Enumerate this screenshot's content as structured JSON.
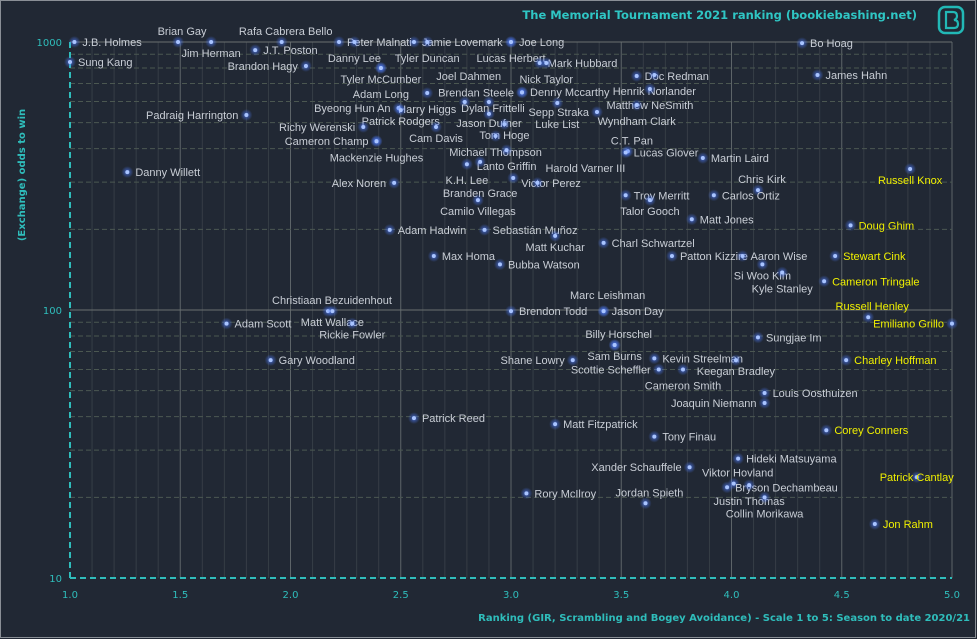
{
  "chart_data": {
    "type": "scatter",
    "title": "The Memorial Tournament 2021 ranking  (bookiebashing.net)",
    "xlabel": "Ranking (GIR, Scrambling and Bogey Avoidance) - Scale 1 to 5: Season to date 2020/21",
    "ylabel": "(Exchange) odds to win",
    "xlim": [
      1.0,
      5.0
    ],
    "ylim": [
      10,
      1000
    ],
    "yscale": "log",
    "x_ticks": [
      "1.0",
      "1.5",
      "2.0",
      "2.5",
      "3.0",
      "3.5",
      "4.0",
      "4.5",
      "5.0"
    ],
    "y_ticks": [
      "10",
      "100",
      "1000"
    ],
    "grid": true,
    "colors": {
      "background": "#212834",
      "label": "#c9ced6",
      "highlight": "#f0f000",
      "accent": "#2fbdbb",
      "point": "#8fb4ff"
    },
    "logo": "bookiebashing B logo",
    "points": [
      {
        "name": "J.B. Holmes",
        "x": 1.02,
        "y": 1000,
        "label": "right"
      },
      {
        "name": "Brian Gay",
        "x": 1.49,
        "y": 1000,
        "label": "above"
      },
      {
        "name": "Jim Herman",
        "x": 1.64,
        "y": 1000,
        "label": "below"
      },
      {
        "name": "Rafa Cabrera Bello",
        "x": 1.96,
        "y": 1000,
        "label": "above"
      },
      {
        "name": "J.T. Poston",
        "x": 1.84,
        "y": 933,
        "label": "right"
      },
      {
        "name": "Sung Kang",
        "x": 1.0,
        "y": 842,
        "label": "right"
      },
      {
        "name": "Peter Malnati",
        "x": 2.22,
        "y": 1000,
        "label": "above"
      },
      {
        "name": "Danny Lee",
        "x": 2.29,
        "y": 1000,
        "label": "right"
      },
      {
        "name": "Jamie Lovemark",
        "x": 2.56,
        "y": 1000,
        "label": "above"
      },
      {
        "name": "Tyler Duncan",
        "x": 2.62,
        "y": 1000,
        "label": "right"
      },
      {
        "name": "Joe Long",
        "x": 3.0,
        "y": 1000,
        "label": "above"
      },
      {
        "name": "Lucas Herbert",
        "x": 3.0,
        "y": 1000,
        "label": "right"
      },
      {
        "name": "Tyler McCumber",
        "x": 2.41,
        "y": 800,
        "label": "above"
      },
      {
        "name": "Adam Long",
        "x": 2.41,
        "y": 800,
        "label": "right"
      },
      {
        "name": "Brandon Hagy",
        "x": 2.07,
        "y": 814,
        "label": "below"
      },
      {
        "name": "Mark Hubbard",
        "x": 3.13,
        "y": 835,
        "label": "left"
      },
      {
        "name": "Nick Taylor",
        "x": 3.16,
        "y": 835,
        "label": "right"
      },
      {
        "name": "Bo Hoag",
        "x": 4.32,
        "y": 990,
        "label": "right"
      },
      {
        "name": "Doc Redman",
        "x": 3.57,
        "y": 747,
        "label": "above"
      },
      {
        "name": "Henrik Norlander",
        "x": 3.65,
        "y": 753,
        "label": "right"
      },
      {
        "name": "James Hahn",
        "x": 4.39,
        "y": 753,
        "label": "right"
      },
      {
        "name": "Denny Mccarthy",
        "x": 3.05,
        "y": 650,
        "label": "above"
      },
      {
        "name": "Brendan Steele",
        "x": 3.05,
        "y": 648,
        "label": "right"
      },
      {
        "name": "Matthew NeSmith",
        "x": 3.63,
        "y": 668,
        "label": "right"
      },
      {
        "name": "Wyndham Clark",
        "x": 3.57,
        "y": 582,
        "label": "above"
      },
      {
        "name": "Sepp Straka",
        "x": 3.39,
        "y": 548,
        "label": "right"
      },
      {
        "name": "Harry Higgs",
        "x": 2.62,
        "y": 645,
        "label": "right"
      },
      {
        "name": "Jason Dufner",
        "x": 2.9,
        "y": 597,
        "label": "right"
      },
      {
        "name": "Joel Dahmen",
        "x": 2.79,
        "y": 597,
        "label": "left"
      },
      {
        "name": "Byeong Hun An",
        "x": 2.49,
        "y": 567,
        "label": "left"
      },
      {
        "name": "Patrick Rodgers",
        "x": 2.5,
        "y": 557,
        "label": "right"
      },
      {
        "name": "Luke List",
        "x": 3.21,
        "y": 592,
        "label": "right"
      },
      {
        "name": "Dylan Frittelli",
        "x": 2.9,
        "y": 539,
        "label": "right"
      },
      {
        "name": "Padraig Harrington",
        "x": 1.8,
        "y": 534,
        "label": "right"
      },
      {
        "name": "Tom Hoge",
        "x": 2.97,
        "y": 494,
        "label": "right"
      },
      {
        "name": "Richy Werenski",
        "x": 2.33,
        "y": 482,
        "label": "right"
      },
      {
        "name": "Cam Davis",
        "x": 2.66,
        "y": 482,
        "label": "right"
      },
      {
        "name": "Michael Thompson",
        "x": 2.93,
        "y": 446,
        "label": "right"
      },
      {
        "name": "Cameron Champ",
        "x": 2.39,
        "y": 427,
        "label": "left"
      },
      {
        "name": "Mackenzie Hughes",
        "x": 2.39,
        "y": 426,
        "label": "below"
      },
      {
        "name": "Lanto Griffin",
        "x": 2.98,
        "y": 395,
        "label": "right"
      },
      {
        "name": "C.T. Pan",
        "x": 3.53,
        "y": 391,
        "label": "above"
      },
      {
        "name": "Lucas Glover",
        "x": 3.52,
        "y": 387,
        "label": "right"
      },
      {
        "name": "Martin Laird",
        "x": 3.87,
        "y": 369,
        "label": "right"
      },
      {
        "name": "K.H. Lee",
        "x": 2.8,
        "y": 350,
        "label": "left"
      },
      {
        "name": "Branden Grace",
        "x": 2.86,
        "y": 357,
        "label": "right"
      },
      {
        "name": "Victor Perez",
        "x": 3.01,
        "y": 311,
        "label": "above"
      },
      {
        "name": "Danny Willett",
        "x": 1.26,
        "y": 327,
        "label": "right"
      },
      {
        "name": "Russell Knox",
        "x": 4.81,
        "y": 336,
        "label": "below",
        "highlight": true
      },
      {
        "name": "Harold Varner III",
        "x": 3.12,
        "y": 298,
        "label": "right"
      },
      {
        "name": "Alex Noren",
        "x": 2.47,
        "y": 298,
        "label": "right"
      },
      {
        "name": "Chris Kirk",
        "x": 4.12,
        "y": 280,
        "label": "above"
      },
      {
        "name": "Carlos Ortiz",
        "x": 3.92,
        "y": 268,
        "label": "right"
      },
      {
        "name": "Troy Merritt",
        "x": 3.52,
        "y": 268,
        "label": "right"
      },
      {
        "name": "Talor Gooch",
        "x": 3.63,
        "y": 257,
        "label": "right"
      },
      {
        "name": "Camilo Villegas",
        "x": 2.85,
        "y": 257,
        "label": "right"
      },
      {
        "name": "Matt Jones",
        "x": 3.82,
        "y": 218,
        "label": "right"
      },
      {
        "name": "Doug Ghim",
        "x": 4.54,
        "y": 207,
        "label": "right",
        "highlight": true
      },
      {
        "name": "Adam Hadwin",
        "x": 2.45,
        "y": 199,
        "label": "right"
      },
      {
        "name": "Sebastián Muñoz",
        "x": 2.88,
        "y": 199,
        "label": "above"
      },
      {
        "name": "Matt Kuchar",
        "x": 3.2,
        "y": 189,
        "label": "right"
      },
      {
        "name": "Charl Schwartzel",
        "x": 3.42,
        "y": 178,
        "label": "right"
      },
      {
        "name": "Patton Kizzire",
        "x": 3.73,
        "y": 159,
        "label": "right"
      },
      {
        "name": "Aaron Wise",
        "x": 4.05,
        "y": 159,
        "label": "above"
      },
      {
        "name": "Si Woo Kim",
        "x": 4.14,
        "y": 148,
        "label": "left"
      },
      {
        "name": "Stewart Cink",
        "x": 4.47,
        "y": 159,
        "label": "right",
        "highlight": true
      },
      {
        "name": "Max Homa",
        "x": 2.65,
        "y": 159,
        "label": "right"
      },
      {
        "name": "Bubba Watson",
        "x": 2.95,
        "y": 148,
        "label": "right"
      },
      {
        "name": "Kyle Stanley",
        "x": 4.23,
        "y": 138,
        "label": "right"
      },
      {
        "name": "Cameron Tringale",
        "x": 4.42,
        "y": 128,
        "label": "right",
        "highlight": true
      },
      {
        "name": "Christiaan Bezuidenhout",
        "x": 2.17,
        "y": 99,
        "label": "above"
      },
      {
        "name": "Matt Wallace",
        "x": 2.19,
        "y": 99,
        "label": "right"
      },
      {
        "name": "Brendon Todd",
        "x": 3.0,
        "y": 99,
        "label": "right"
      },
      {
        "name": "Jason Day",
        "x": 3.42,
        "y": 99,
        "label": "above"
      },
      {
        "name": "Marc Leishman",
        "x": 3.42,
        "y": 99,
        "label": "right"
      },
      {
        "name": "Russell Henley",
        "x": 4.62,
        "y": 94,
        "label": "above",
        "highlight": true
      },
      {
        "name": "Emiliano Grillo",
        "x": 5.0,
        "y": 89,
        "label": "below",
        "highlight": true
      },
      {
        "name": "Adam Scott",
        "x": 1.71,
        "y": 89,
        "label": "right"
      },
      {
        "name": "Rickie Fowler",
        "x": 2.28,
        "y": 89,
        "label": "right"
      },
      {
        "name": "Sungjae Im",
        "x": 4.12,
        "y": 79,
        "label": "right"
      },
      {
        "name": "Billy Horschel",
        "x": 3.47,
        "y": 74,
        "label": "above"
      },
      {
        "name": "Sam Burns",
        "x": 3.47,
        "y": 74,
        "label": "right"
      },
      {
        "name": "Gary Woodland",
        "x": 1.91,
        "y": 65,
        "label": "right"
      },
      {
        "name": "Shane Lowry",
        "x": 3.28,
        "y": 65,
        "label": "right"
      },
      {
        "name": "Kevin Streelman",
        "x": 3.65,
        "y": 66,
        "label": "right"
      },
      {
        "name": "Keegan Bradley",
        "x": 4.02,
        "y": 65,
        "label": "right"
      },
      {
        "name": "Charley Hoffman",
        "x": 4.52,
        "y": 65,
        "label": "right",
        "highlight": true
      },
      {
        "name": "Scottie Scheffler",
        "x": 3.67,
        "y": 60,
        "label": "below"
      },
      {
        "name": "Cameron Smith",
        "x": 3.78,
        "y": 60,
        "label": "right"
      },
      {
        "name": "Louis Oosthuizen",
        "x": 4.15,
        "y": 49,
        "label": "right"
      },
      {
        "name": "Joaquin Niemann",
        "x": 4.15,
        "y": 45,
        "label": "right"
      },
      {
        "name": "Patrick Reed",
        "x": 2.56,
        "y": 39.5,
        "label": "right"
      },
      {
        "name": "Matt Fitzpatrick",
        "x": 3.2,
        "y": 37.5,
        "label": "right"
      },
      {
        "name": "Corey Conners",
        "x": 4.43,
        "y": 35.6,
        "label": "right",
        "highlight": true
      },
      {
        "name": "Tony Finau",
        "x": 3.65,
        "y": 33.7,
        "label": "right"
      },
      {
        "name": "Hideki Matsuyama",
        "x": 4.03,
        "y": 27.9,
        "label": "right"
      },
      {
        "name": "Xander Schauffele",
        "x": 3.81,
        "y": 25.9,
        "label": "left"
      },
      {
        "name": "Patrick Cantlay",
        "x": 4.84,
        "y": 23.8,
        "label": "center",
        "highlight": true
      },
      {
        "name": "Viktor Hovland",
        "x": 4.01,
        "y": 22.5,
        "label": "above"
      },
      {
        "name": "Bryson Dechambeau",
        "x": 3.98,
        "y": 21.8,
        "label": "right"
      },
      {
        "name": "Justin Thomas",
        "x": 4.08,
        "y": 22.2,
        "label": "below"
      },
      {
        "name": "Collin Morikawa",
        "x": 4.15,
        "y": 20.0,
        "label": "below"
      },
      {
        "name": "Rory McIlroy",
        "x": 3.07,
        "y": 20.7,
        "label": "right"
      },
      {
        "name": "Jordan Spieth",
        "x": 3.61,
        "y": 19.0,
        "label": "right"
      },
      {
        "name": "Jon Rahm",
        "x": 4.65,
        "y": 15.9,
        "label": "right",
        "highlight": true
      }
    ]
  }
}
